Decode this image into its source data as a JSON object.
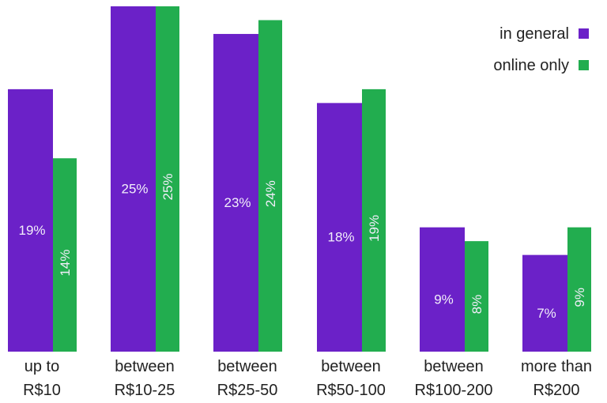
{
  "chart_data": {
    "type": "bar",
    "title": "",
    "xlabel": "",
    "ylabel": "",
    "ylim": [
      0,
      25
    ],
    "grid": false,
    "legend_position": "top-right",
    "categories": [
      [
        "up to",
        "R$10"
      ],
      [
        "between",
        "R$10-25"
      ],
      [
        "between",
        "R$25-50"
      ],
      [
        "between",
        "R$50-100"
      ],
      [
        "between",
        "R$100-200"
      ],
      [
        "more than",
        "R$200"
      ]
    ],
    "series": [
      {
        "name": "in general",
        "color": "#6b21c8",
        "values": [
          19,
          25,
          23,
          18,
          9,
          7
        ],
        "labels": [
          "19%",
          "25%",
          "23%",
          "18%",
          "9%",
          "7%"
        ]
      },
      {
        "name": "online only",
        "color": "#22ad4f",
        "values": [
          14,
          25,
          24,
          19,
          8,
          9
        ],
        "labels": [
          "14%",
          "25%",
          "24%",
          "19%",
          "8%",
          "9%"
        ]
      }
    ]
  }
}
